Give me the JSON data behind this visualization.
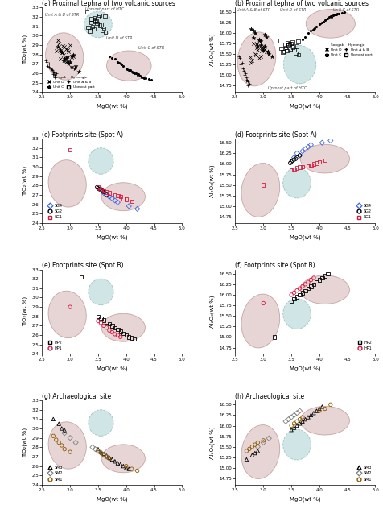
{
  "titles": [
    "(a) Proximal tephra of two volcanic sources",
    "(b) Proximal tephra of two volcanic sources",
    "(c) Footprints site (Spot A)",
    "(d) Footprints site (Spot A)",
    "(e) Footprints site (Spot B)",
    "(f) Footprints site (Spot B)",
    "(g) Archaeological site",
    "(h) Archaeological site"
  ],
  "xlim": [
    2.5,
    5.0
  ],
  "ylim_tio2": [
    2.4,
    3.3
  ],
  "ylim_al2o3": [
    14.6,
    16.6
  ],
  "xlabel": "MgO(wt %)",
  "ylabel_tio2": "TiO₂(wt %)",
  "ylabel_al2o3": "Al₂O₃(wt %)",
  "a_unitD_mgo": [
    2.85,
    2.9,
    2.95,
    3.0,
    3.05,
    2.8,
    2.88,
    2.92,
    2.97,
    2.82,
    2.78,
    3.02,
    2.87,
    2.93,
    2.76
  ],
  "a_unitD_tio2": [
    2.82,
    2.88,
    2.85,
    2.9,
    2.78,
    2.92,
    2.8,
    2.86,
    2.83,
    2.75,
    2.95,
    2.77,
    2.89,
    2.72,
    2.84
  ],
  "a_unitD_al2o3": [
    15.5,
    15.6,
    15.45,
    15.7,
    15.55,
    15.35,
    15.65,
    15.4,
    15.58,
    15.75,
    15.3,
    15.62,
    15.48,
    15.8,
    15.42
  ],
  "a_unitC_mgo": [
    2.9,
    2.95,
    3.0,
    3.05,
    3.1,
    2.85,
    2.88,
    2.92,
    2.97,
    3.02,
    2.82,
    3.08,
    2.78,
    2.96,
    3.15,
    2.83,
    3.03
  ],
  "a_unitC_tio2": [
    2.75,
    2.78,
    2.72,
    2.8,
    2.68,
    2.82,
    2.74,
    2.76,
    2.7,
    2.79,
    2.85,
    2.65,
    2.88,
    2.73,
    2.62,
    2.83,
    2.67
  ],
  "a_unitC_al2o3": [
    15.7,
    15.8,
    15.6,
    15.9,
    15.5,
    16.0,
    15.75,
    15.85,
    15.65,
    15.95,
    16.05,
    15.55,
    16.1,
    15.72,
    15.45,
    15.88,
    15.68
  ],
  "a_unitAB_mgo": [
    2.6,
    2.65,
    2.7,
    2.75,
    2.62,
    2.68,
    2.72,
    2.58,
    2.63,
    2.67,
    2.71,
    2.73,
    2.56,
    2.66,
    2.69
  ],
  "a_unitAB_tio2": [
    2.68,
    2.65,
    2.62,
    2.6,
    2.7,
    2.63,
    2.58,
    2.72,
    2.67,
    2.64,
    2.61,
    2.56,
    2.74,
    2.66,
    2.59
  ],
  "a_unitAB_al2o3": [
    15.25,
    15.1,
    14.95,
    14.8,
    15.3,
    15.05,
    14.85,
    15.4,
    15.15,
    15.0,
    14.9,
    14.75,
    15.45,
    15.08,
    14.88
  ],
  "a_hyeongje_mgo": [
    3.35,
    3.4,
    3.45,
    3.5,
    3.55,
    3.6,
    3.38,
    3.42,
    3.48,
    3.52,
    3.58,
    3.32,
    3.47,
    3.53,
    3.43,
    3.37,
    3.63,
    3.3,
    3.62,
    3.44
  ],
  "a_hyeongje_tio2": [
    3.05,
    3.1,
    3.15,
    3.2,
    3.12,
    3.08,
    3.18,
    3.07,
    3.13,
    3.22,
    3.06,
    3.09,
    3.16,
    3.11,
    3.19,
    3.14,
    3.04,
    3.25,
    3.21,
    3.17
  ],
  "a_hyeongje_al2o3": [
    15.55,
    15.65,
    15.7,
    15.75,
    15.6,
    15.68,
    15.72,
    15.58,
    15.62,
    15.78,
    15.52,
    15.64,
    15.74,
    15.66,
    15.76,
    15.56,
    15.48,
    15.82,
    15.8,
    15.71
  ],
  "a_songak2_mgo": [
    3.7,
    3.8,
    3.85,
    3.9,
    3.95,
    4.0,
    4.05,
    4.1,
    4.15,
    4.2,
    4.25,
    4.3,
    4.35,
    4.4,
    4.45,
    3.75,
    3.92,
    4.02,
    4.12,
    4.22,
    4.32,
    3.88,
    4.08,
    4.18,
    4.28
  ],
  "a_songak2_tio2": [
    2.78,
    2.75,
    2.72,
    2.7,
    2.68,
    2.65,
    2.63,
    2.62,
    2.6,
    2.58,
    2.57,
    2.56,
    2.55,
    2.54,
    2.53,
    2.76,
    2.69,
    2.64,
    2.61,
    2.59,
    2.55,
    2.71,
    2.63,
    2.6,
    2.56
  ],
  "a_songak2_al2o3": [
    15.85,
    16.0,
    16.05,
    16.1,
    16.15,
    16.2,
    16.25,
    16.3,
    16.35,
    16.4,
    16.42,
    16.44,
    16.46,
    16.48,
    16.5,
    15.9,
    16.12,
    16.22,
    16.32,
    16.38,
    16.45,
    16.08,
    16.27,
    16.37,
    16.43
  ],
  "c_sg4_mgo": [
    3.55,
    3.6,
    3.7,
    3.8,
    3.85,
    3.65,
    3.75,
    4.05,
    4.2
  ],
  "c_sg4_tio2": [
    2.76,
    2.72,
    2.68,
    2.64,
    2.62,
    2.7,
    2.66,
    2.58,
    2.55
  ],
  "c_sg4_al2o3": [
    16.15,
    16.25,
    16.3,
    16.4,
    16.45,
    16.2,
    16.35,
    16.5,
    16.55
  ],
  "c_sg2_mgo": [
    3.5,
    3.55,
    3.6,
    3.65,
    3.58,
    3.52,
    3.48
  ],
  "c_sg2_tio2": [
    2.77,
    2.75,
    2.73,
    2.7,
    2.74,
    2.76,
    2.78
  ],
  "c_sg2_al2o3": [
    16.05,
    16.1,
    16.15,
    16.2,
    16.12,
    16.08,
    16.02
  ],
  "c_sg1_mgo": [
    3.0,
    3.5,
    3.6,
    3.8,
    3.9,
    4.0,
    3.55,
    3.7,
    3.85,
    3.95,
    4.1,
    3.65
  ],
  "c_sg1_tio2": [
    3.18,
    2.78,
    2.74,
    2.7,
    2.68,
    2.65,
    2.76,
    2.72,
    2.69,
    2.66,
    2.63,
    2.73
  ],
  "c_sg1_al2o3": [
    15.5,
    15.85,
    15.9,
    15.95,
    16.0,
    16.05,
    15.88,
    15.93,
    15.97,
    16.02,
    16.08,
    15.92
  ],
  "e_hp2_mgo": [
    3.5,
    3.55,
    3.6,
    3.65,
    3.7,
    3.75,
    3.8,
    3.85,
    3.9,
    3.95,
    4.0,
    4.05,
    4.1,
    4.15,
    3.2
  ],
  "e_hp2_tio2": [
    2.8,
    2.78,
    2.76,
    2.74,
    2.72,
    2.7,
    2.68,
    2.66,
    2.64,
    2.62,
    2.6,
    2.58,
    2.57,
    2.56,
    3.22
  ],
  "e_hp2_al2o3": [
    15.85,
    15.9,
    15.95,
    16.0,
    16.05,
    16.1,
    16.15,
    16.2,
    16.25,
    16.3,
    16.35,
    16.4,
    16.45,
    16.5,
    15.0
  ],
  "e_hp1_mgo": [
    3.0,
    3.5,
    3.55,
    3.6,
    3.65,
    3.7,
    3.75,
    3.8,
    3.85,
    3.9
  ],
  "e_hp1_tio2": [
    2.9,
    2.75,
    2.73,
    2.7,
    2.68,
    2.65,
    2.63,
    2.61,
    2.6,
    2.58
  ],
  "e_hp1_al2o3": [
    15.8,
    16.0,
    16.05,
    16.1,
    16.15,
    16.2,
    16.25,
    16.3,
    16.35,
    16.4
  ],
  "g_sm3_mgo": [
    3.5,
    3.55,
    3.6,
    3.65,
    3.7,
    3.75,
    3.8,
    3.85,
    3.9,
    3.95,
    4.0,
    4.05,
    2.7,
    2.8,
    2.85,
    2.9
  ],
  "g_sm3_tio2": [
    2.78,
    2.75,
    2.73,
    2.71,
    2.69,
    2.67,
    2.65,
    2.63,
    2.62,
    2.6,
    2.58,
    2.57,
    3.1,
    3.05,
    3.0,
    2.98
  ],
  "g_sm3_al2o3": [
    15.9,
    15.95,
    16.0,
    16.05,
    16.1,
    16.15,
    16.2,
    16.25,
    16.3,
    16.35,
    16.4,
    16.45,
    15.2,
    15.3,
    15.35,
    15.4
  ],
  "g_sm2_mgo": [
    3.4,
    3.45,
    3.5,
    3.55,
    3.6,
    3.65,
    2.9,
    3.0,
    3.1
  ],
  "g_sm2_tio2": [
    2.8,
    2.78,
    2.76,
    2.74,
    2.72,
    2.7,
    2.95,
    2.9,
    2.85
  ],
  "g_sm2_al2o3": [
    16.1,
    16.15,
    16.2,
    16.25,
    16.3,
    16.35,
    15.5,
    15.6,
    15.7
  ],
  "g_sm1_mgo": [
    2.7,
    2.75,
    2.8,
    2.85,
    2.9,
    3.0,
    3.5,
    3.55,
    3.6,
    3.65,
    3.7,
    4.0,
    4.1,
    4.2
  ],
  "g_sm1_tio2": [
    2.92,
    2.88,
    2.85,
    2.82,
    2.78,
    2.75,
    2.76,
    2.74,
    2.72,
    2.7,
    2.68,
    2.6,
    2.57,
    2.55
  ],
  "g_sm1_al2o3": [
    15.4,
    15.45,
    15.5,
    15.55,
    15.6,
    15.65,
    16.0,
    16.05,
    16.1,
    16.15,
    16.2,
    16.35,
    16.4,
    16.5
  ],
  "color_pink": "#dbbfbf",
  "color_blue": "#b8d8d8",
  "color_edge_pink": "#b08080",
  "color_edge_blue": "#7aadad"
}
